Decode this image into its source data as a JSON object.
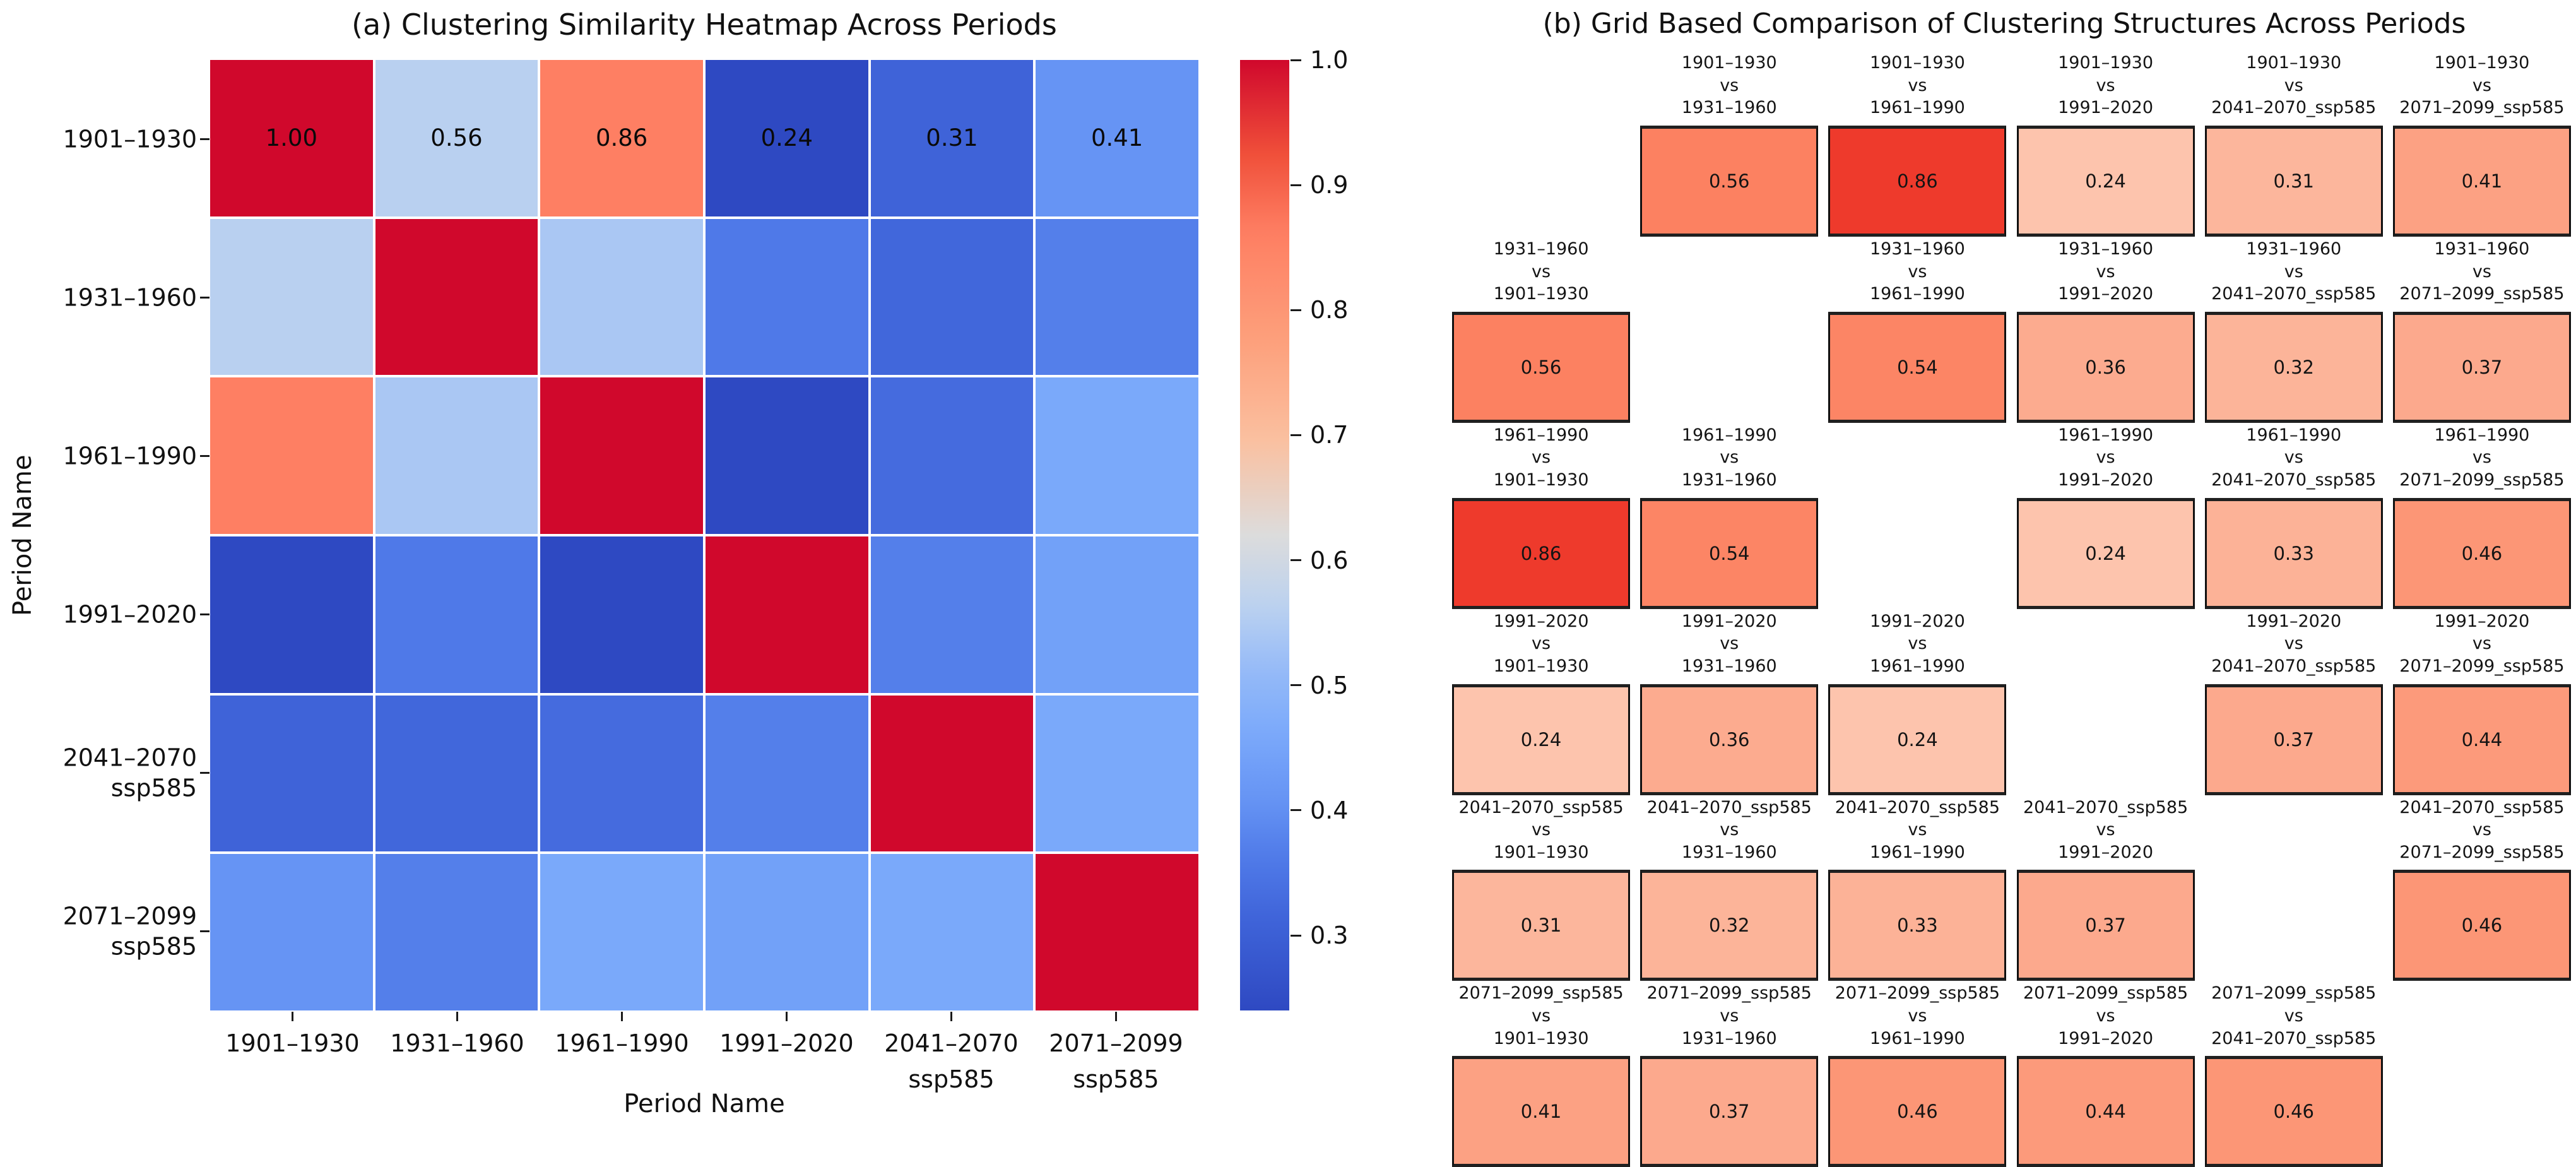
{
  "panel_a": {
    "title": "(a) Clustering Similarity Heatmap Across Periods",
    "xlabel": "Period Name",
    "ylabel": "Period Name",
    "xtick_labels": [
      [
        "1901–1930"
      ],
      [
        "1931–1960"
      ],
      [
        "1961–1990"
      ],
      [
        "1991–2020"
      ],
      [
        "2041–2070",
        "ssp585"
      ],
      [
        "2071–2099",
        "ssp585"
      ]
    ],
    "ytick_labels": [
      [
        "1901–1930"
      ],
      [
        "1931–1960"
      ],
      [
        "1961–1990"
      ],
      [
        "1991–2020"
      ],
      [
        "2041–2070",
        "ssp585"
      ],
      [
        "2071–2099",
        "ssp585"
      ]
    ],
    "annotations_first_row": [
      "1.00",
      "0.56",
      "0.86",
      "0.24",
      "0.31",
      "0.41"
    ],
    "colorbar_ticks": [
      "1.0",
      "0.9",
      "0.8",
      "0.7",
      "0.6",
      "0.5",
      "0.4",
      "0.3"
    ]
  },
  "panel_b": {
    "title": "(b) Grid Based Comparison of Clustering Structures Across Periods",
    "period_labels": [
      "1901–1930",
      "1931–1960",
      "1961–1990",
      "1991–2020",
      "2041–2070_ssp585",
      "2071–2099_ssp585"
    ],
    "vs_label": "vs"
  },
  "colors": {
    "heatmap_colormap_stops": [
      {
        "t": 0.0,
        "hex": "#2e49c2"
      },
      {
        "t": 0.1,
        "hex": "#4065da"
      },
      {
        "t": 0.16,
        "hex": "#507ae8"
      },
      {
        "t": 0.22,
        "hex": "#6593f4"
      },
      {
        "t": 0.29,
        "hex": "#7aa9fa"
      },
      {
        "t": 0.36,
        "hex": "#96baf8"
      },
      {
        "t": 0.42,
        "hex": "#b9d0f0"
      },
      {
        "t": 0.5,
        "hex": "#dcdcdc"
      },
      {
        "t": 0.6,
        "hex": "#fac0a0"
      },
      {
        "t": 0.7,
        "hex": "#fda17d"
      },
      {
        "t": 0.82,
        "hex": "#fe7e62"
      },
      {
        "t": 0.9,
        "hex": "#f0503a"
      },
      {
        "t": 1.0,
        "hex": "#d0082c"
      }
    ],
    "grid_colormap_stops": [
      {
        "t": 0.0,
        "hex": "#fff5f0"
      },
      {
        "t": 0.125,
        "hex": "#fee0d2"
      },
      {
        "t": 0.25,
        "hex": "#fcbba1"
      },
      {
        "t": 0.375,
        "hex": "#fc9272"
      },
      {
        "t": 0.5,
        "hex": "#fb6a4a"
      },
      {
        "t": 0.625,
        "hex": "#ef3b2c"
      },
      {
        "t": 0.75,
        "hex": "#cb181d"
      },
      {
        "t": 1.0,
        "hex": "#67000d"
      }
    ],
    "annotation_text": "#0a0a0a",
    "tick_color": "#1a1a1a"
  },
  "chart_data": [
    {
      "type": "heatmap",
      "title": "(a) Clustering Similarity Heatmap Across Periods",
      "xlabel": "Period Name",
      "ylabel": "Period Name",
      "categories": [
        "1901–1930",
        "1931–1960",
        "1961–1990",
        "1991–2020",
        "2041–2070 ssp585",
        "2071–2099 ssp585"
      ],
      "matrix": [
        [
          1.0,
          0.56,
          0.86,
          0.24,
          0.31,
          0.41
        ],
        [
          0.56,
          1.0,
          0.54,
          0.36,
          0.32,
          0.37
        ],
        [
          0.86,
          0.54,
          1.0,
          0.24,
          0.33,
          0.46
        ],
        [
          0.24,
          0.36,
          0.24,
          1.0,
          0.37,
          0.44
        ],
        [
          0.31,
          0.32,
          0.33,
          0.37,
          1.0,
          0.46
        ],
        [
          0.41,
          0.37,
          0.46,
          0.44,
          0.46,
          1.0
        ]
      ],
      "colormap": "coolwarm",
      "vmin": 0.24,
      "vmax": 1.0,
      "colorbar_ticks": [
        1.0,
        0.9,
        0.8,
        0.7,
        0.6,
        0.5,
        0.4,
        0.3
      ],
      "annotations": "numeric labels shown on first row only",
      "grid": "thin white lines between cells",
      "legend_position": "colorbar right"
    },
    {
      "type": "heatmap",
      "title": "(b) Grid Based Comparison of Clustering Structures Across Periods",
      "categories": [
        "1901–1930",
        "1931–1960",
        "1961–1990",
        "1991–2020",
        "2041–2070_ssp585",
        "2071–2099_ssp585"
      ],
      "matrix": [
        [
          null,
          0.56,
          0.86,
          0.24,
          0.31,
          0.41
        ],
        [
          0.56,
          null,
          0.54,
          0.36,
          0.32,
          0.37
        ],
        [
          0.86,
          0.54,
          null,
          0.24,
          0.33,
          0.46
        ],
        [
          0.24,
          0.36,
          0.24,
          null,
          0.37,
          0.44
        ],
        [
          0.31,
          0.32,
          0.33,
          0.37,
          null,
          0.46
        ],
        [
          0.41,
          0.37,
          0.46,
          0.44,
          0.46,
          null
        ]
      ],
      "colormap": "Reds",
      "cell_format": "row-period vs column-period label above a bordered box containing the value; diagonal cells empty",
      "legend_position": "none"
    }
  ]
}
